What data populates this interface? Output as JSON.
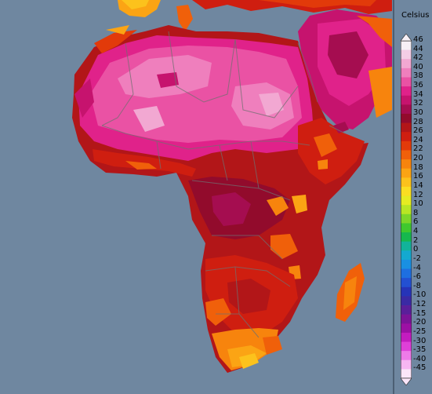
{
  "legend": {
    "unit_label": "Celsius",
    "levels": [
      {
        "label": "46",
        "color": "#f6f0f6"
      },
      {
        "label": "44",
        "color": "#f4cde6"
      },
      {
        "label": "42",
        "color": "#f2a8d2"
      },
      {
        "label": "40",
        "color": "#ef7fbd"
      },
      {
        "label": "38",
        "color": "#ea52a4"
      },
      {
        "label": "36",
        "color": "#e0228a"
      },
      {
        "label": "34",
        "color": "#c6136e"
      },
      {
        "label": "32",
        "color": "#a50d50"
      },
      {
        "label": "30",
        "color": "#920b2c"
      },
      {
        "label": "28",
        "color": "#b21618"
      },
      {
        "label": "26",
        "color": "#cf1e10"
      },
      {
        "label": "24",
        "color": "#e23a0a"
      },
      {
        "label": "22",
        "color": "#f0600a"
      },
      {
        "label": "20",
        "color": "#f7840d"
      },
      {
        "label": "18",
        "color": "#fba414"
      },
      {
        "label": "16",
        "color": "#fcc21c"
      },
      {
        "label": "14",
        "color": "#fbde22"
      },
      {
        "label": "12",
        "color": "#e6ec22"
      },
      {
        "label": "10",
        "color": "#b8e624"
      },
      {
        "label": "8",
        "color": "#7cd629"
      },
      {
        "label": "6",
        "color": "#3fc82e"
      },
      {
        "label": "4",
        "color": "#16b84e"
      },
      {
        "label": "2",
        "color": "#12b39a"
      },
      {
        "label": "0",
        "color": "#14a9d0"
      },
      {
        "label": "-2",
        "color": "#1990e2"
      },
      {
        "label": "-4",
        "color": "#1e6fe0"
      },
      {
        "label": "-6",
        "color": "#2350d2"
      },
      {
        "label": "-8",
        "color": "#2634b8"
      },
      {
        "label": "-10",
        "color": "#3a2aa4"
      },
      {
        "label": "-12",
        "color": "#5a1f9a"
      },
      {
        "label": "-15",
        "color": "#7c1498"
      },
      {
        "label": "-20",
        "color": "#9c10a4"
      },
      {
        "label": "-25",
        "color": "#c31cbf"
      },
      {
        "label": "-30",
        "color": "#de40d8"
      },
      {
        "label": "-35",
        "color": "#ee7be8"
      },
      {
        "label": "-40",
        "color": "#f7b6f2"
      },
      {
        "label": "-45",
        "color": "#fbe6f9"
      }
    ]
  },
  "colors": {
    "ocean": "#6f87a0",
    "border_line": "#707070",
    "panel_border": "#4c5f73"
  }
}
